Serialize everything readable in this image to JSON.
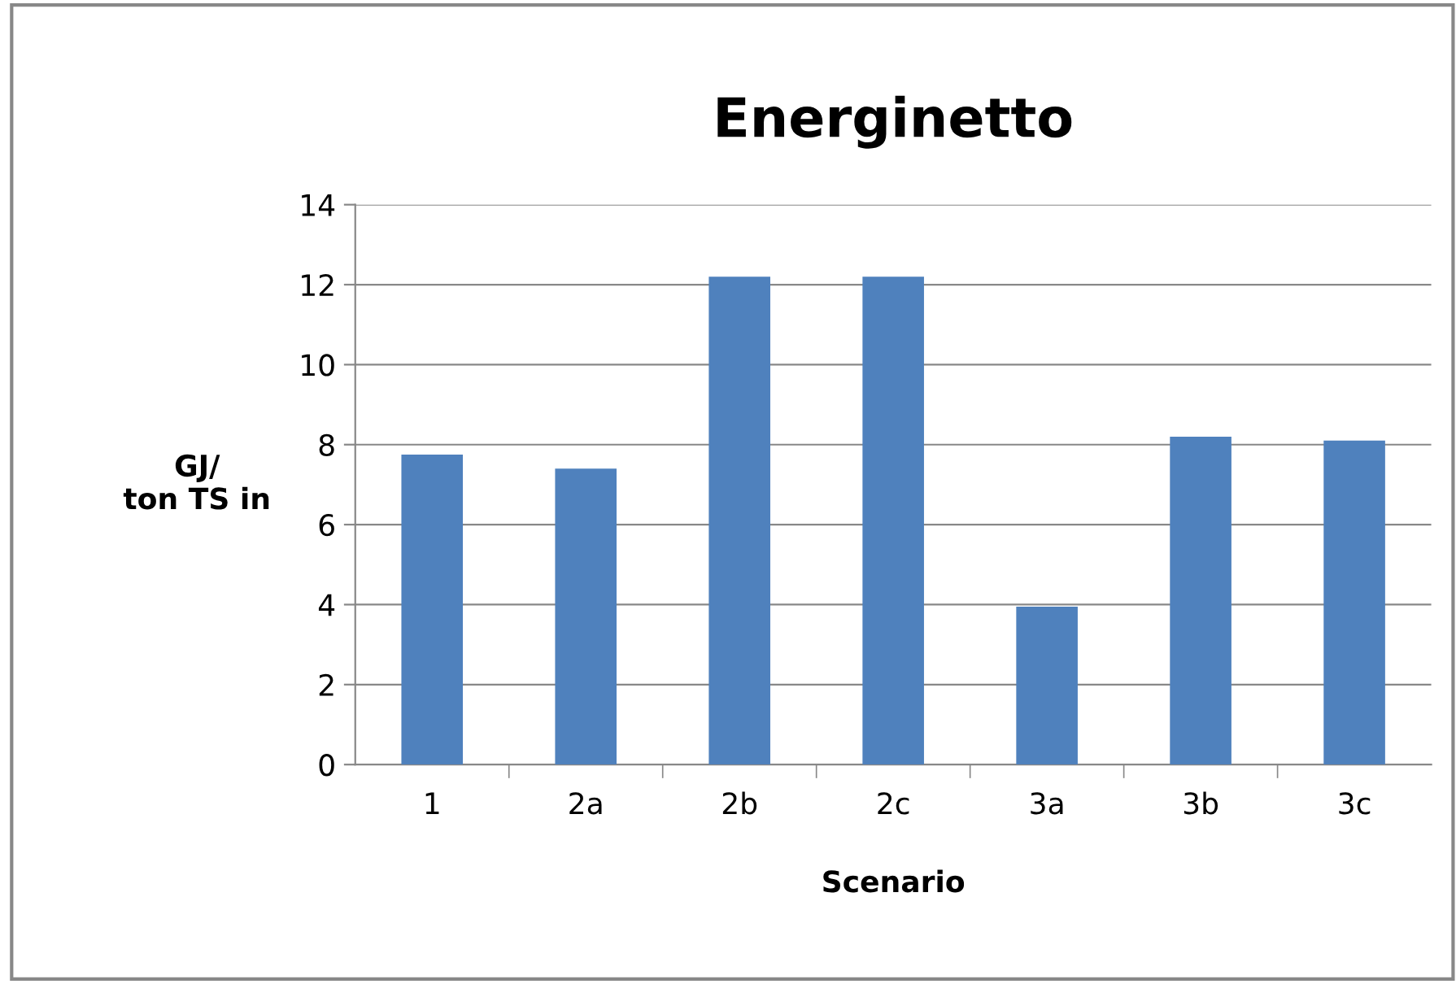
{
  "chart_data": {
    "type": "bar",
    "title": "Energinetto",
    "xlabel": "Scenario",
    "ylabel": "GJ/\nton TS in",
    "categories": [
      "1",
      "2a",
      "2b",
      "2c",
      "3a",
      "3b",
      "3c"
    ],
    "values": [
      7.75,
      7.4,
      12.2,
      12.2,
      3.95,
      8.2,
      8.1
    ],
    "color": "#4f81bd",
    "ylim": [
      0,
      14
    ],
    "yticks": [
      0,
      2,
      4,
      6,
      8,
      10,
      12,
      14
    ],
    "grid": "y",
    "legend": false
  }
}
